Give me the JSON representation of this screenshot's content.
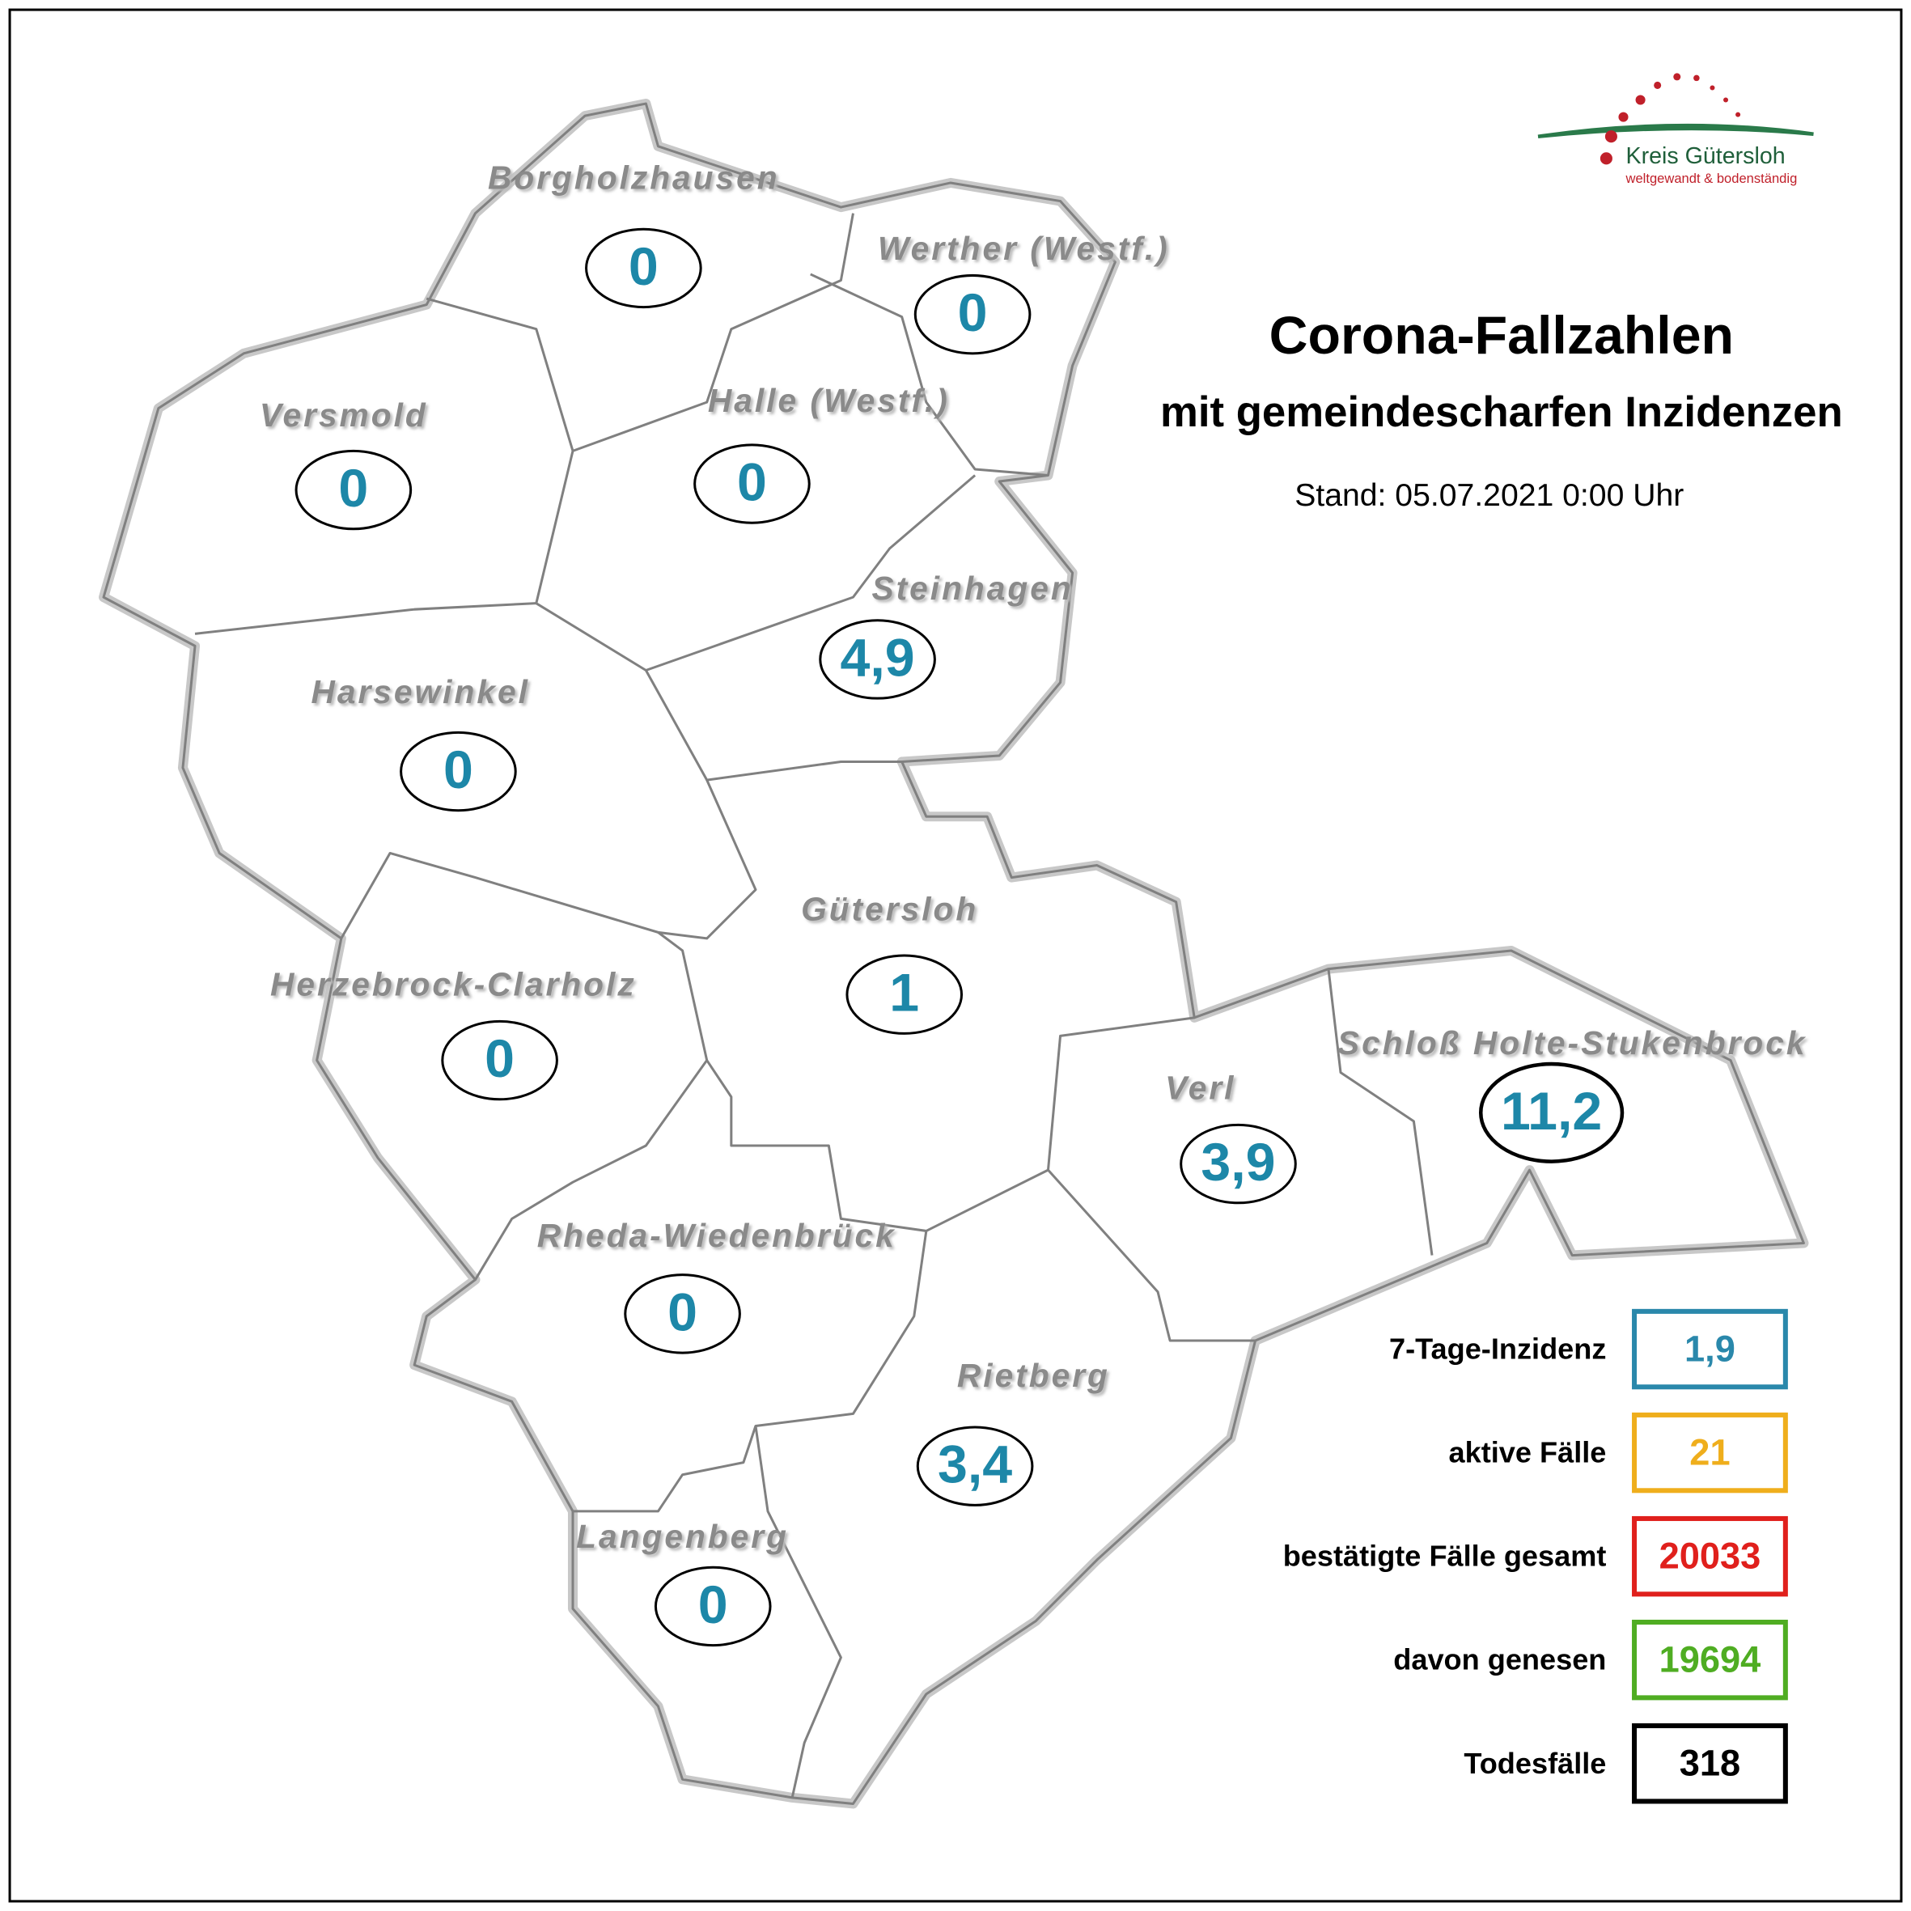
{
  "logo": {
    "name": "Kreis Gütersloh",
    "slogan": "weltgewandt & bodenständig"
  },
  "header": {
    "title": "Corona-Fallzahlen",
    "subtitle": "mit gemeindescharfen Inzidenzen",
    "date": "Stand: 05.07.2021 0:00 Uhr"
  },
  "municipalities": [
    {
      "name": "Borgholzhausen",
      "value": "0"
    },
    {
      "name": "Werther (Westf.)",
      "value": "0"
    },
    {
      "name": "Versmold",
      "value": "0"
    },
    {
      "name": "Halle (Westf.)",
      "value": "0"
    },
    {
      "name": "Steinhagen",
      "value": "4,9"
    },
    {
      "name": "Harsewinkel",
      "value": "0"
    },
    {
      "name": "Gütersloh",
      "value": "1"
    },
    {
      "name": "Herzebrock-Clarholz",
      "value": "0"
    },
    {
      "name": "Verl",
      "value": "3,9"
    },
    {
      "name": "Schloß Holte-Stukenbrock",
      "value": "11,2"
    },
    {
      "name": "Rheda-Wiedenbrück",
      "value": "0"
    },
    {
      "name": "Rietberg",
      "value": "3,4"
    },
    {
      "name": "Langenberg",
      "value": "0"
    }
  ],
  "stats": [
    {
      "label": "7-Tage-Inzidenz",
      "value": "1,9",
      "color": "#2a88ab"
    },
    {
      "label": "aktive Fälle",
      "value": "21",
      "color": "#efae1c"
    },
    {
      "label": "bestätigte Fälle gesamt",
      "value": "20033",
      "color": "#e0201c"
    },
    {
      "label": "davon genesen",
      "value": "19694",
      "color": "#4fad22"
    },
    {
      "label": "Todesfälle",
      "value": "318",
      "color": "#000000"
    }
  ]
}
